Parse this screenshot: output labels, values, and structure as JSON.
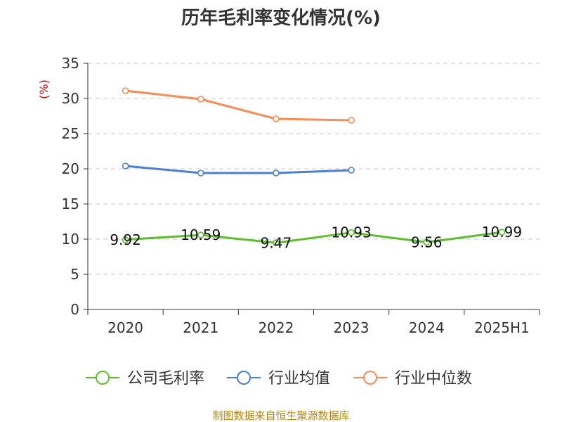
{
  "chart_data": {
    "type": "line",
    "title": "历年毛利率变化情况(%)",
    "ylabel": "(%)",
    "xlabel": "",
    "categories": [
      "2020",
      "2021",
      "2022",
      "2023",
      "2024",
      "2025H1"
    ],
    "ylim": [
      0,
      35
    ],
    "yticks": [
      0,
      5,
      10,
      15,
      20,
      25,
      30,
      35
    ],
    "grid": true,
    "legend_position": "bottom",
    "series": [
      {
        "name": "公司毛利率",
        "color": "#5cbf2a",
        "values": [
          9.92,
          10.59,
          9.47,
          10.93,
          9.56,
          10.99
        ],
        "labels": [
          "9.92",
          "10.59",
          "9.47",
          "10.93",
          "9.56",
          "10.99"
        ]
      },
      {
        "name": "行业均值",
        "color": "#4a7fd6",
        "values": [
          20.4,
          19.4,
          19.4,
          19.8,
          null,
          null
        ]
      },
      {
        "name": "行业中位数",
        "color": "#f78d54",
        "values": [
          31.1,
          29.9,
          27.1,
          26.9,
          null,
          null
        ]
      }
    ]
  },
  "source": "制图数据来自恒生聚源数据库"
}
